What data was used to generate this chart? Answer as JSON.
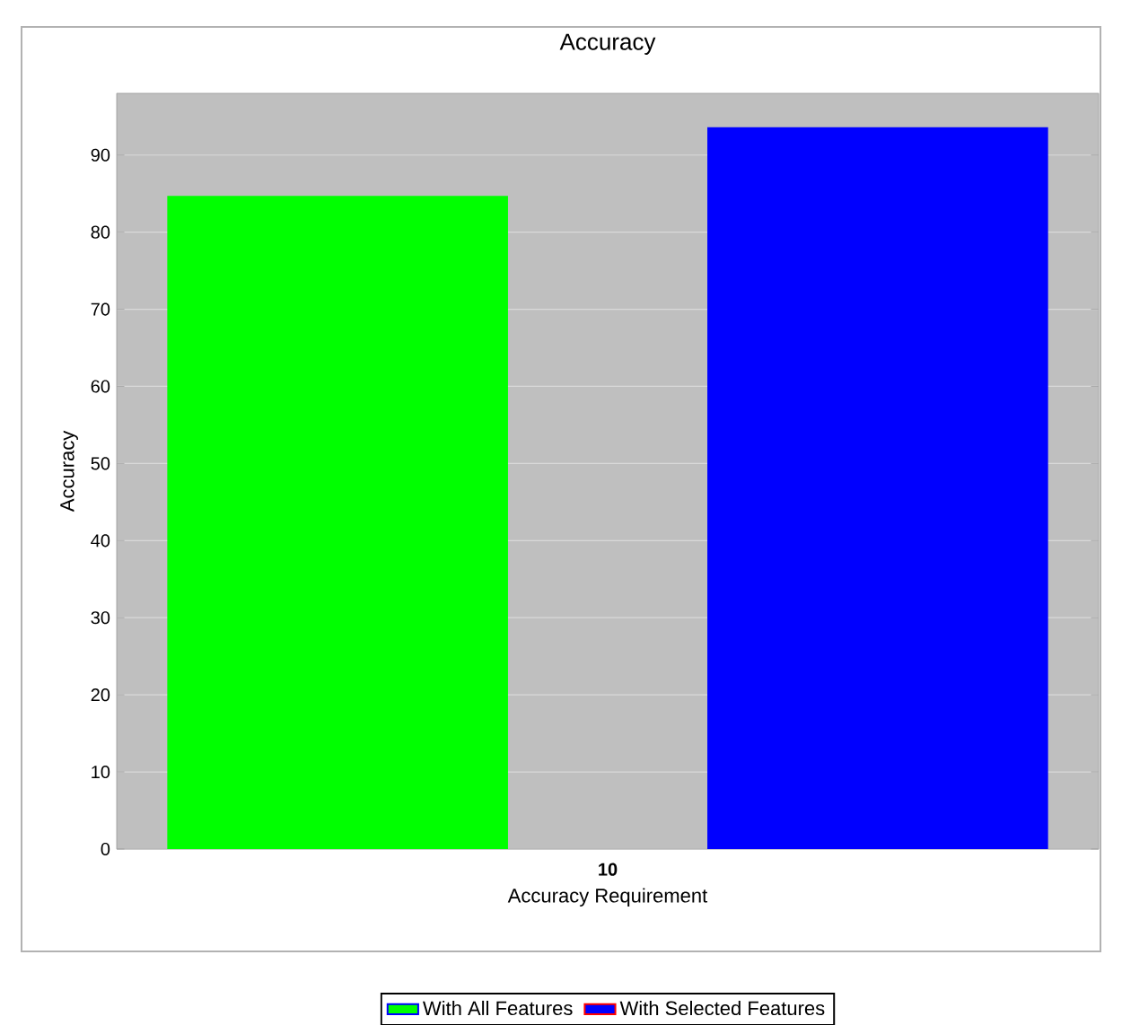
{
  "chart_data": {
    "type": "bar",
    "title": "Accuracy",
    "xlabel": "Accuracy Requirement",
    "ylabel": "Accuracy",
    "categories": [
      "10"
    ],
    "series": [
      {
        "name": "With All Features",
        "color": "#00ff00",
        "values": [
          84.7
        ]
      },
      {
        "name": "With Selected Features",
        "color": "#0000ff",
        "values": [
          93.6
        ]
      }
    ],
    "ylim": [
      0,
      98
    ],
    "yticks": [
      0,
      10,
      20,
      30,
      40,
      50,
      60,
      70,
      80,
      90
    ],
    "grid": "y",
    "legend": "bottom"
  }
}
